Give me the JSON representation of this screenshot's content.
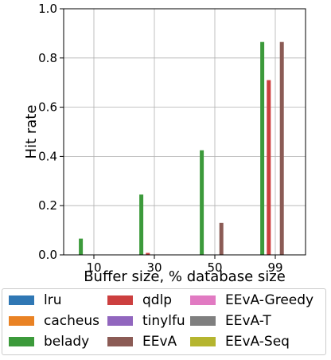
{
  "chart_data": {
    "type": "bar",
    "title": "",
    "xlabel": "Buffer size, % database size",
    "ylabel": "Hit rate",
    "ylim": [
      0,
      1.0
    ],
    "yticks": [
      "0.0",
      "0.2",
      "0.4",
      "0.6",
      "0.8",
      "1.0"
    ],
    "grid": true,
    "legend_position": "bottom",
    "categories": [
      "10",
      "30",
      "50",
      "99"
    ],
    "series": [
      {
        "name": "lru",
        "color": "#2f77b4",
        "values": [
          0,
          0,
          0,
          0
        ]
      },
      {
        "name": "cacheus",
        "color": "#e98224",
        "values": [
          0,
          0,
          0,
          0
        ]
      },
      {
        "name": "belady",
        "color": "#3c9a3b",
        "values": [
          0.066,
          0.245,
          0.425,
          0.865
        ]
      },
      {
        "name": "qdlp",
        "color": "#cc3f3f",
        "values": [
          0,
          0.008,
          0,
          0.71
        ]
      },
      {
        "name": "tinylfu",
        "color": "#9166be",
        "values": [
          0,
          0,
          0,
          0
        ]
      },
      {
        "name": "EEvA",
        "color": "#8b5b55",
        "values": [
          0,
          0,
          0.13,
          0.865
        ]
      },
      {
        "name": "EEvA-Greedy",
        "color": "#e17ac2",
        "values": [
          0,
          0,
          0,
          0
        ]
      },
      {
        "name": "EEvA-T",
        "color": "#7f7f7f",
        "values": [
          0,
          0,
          0,
          0
        ]
      },
      {
        "name": "EEvA-Seq",
        "color": "#b5b52f",
        "values": [
          0,
          0,
          0,
          0
        ]
      }
    ]
  }
}
